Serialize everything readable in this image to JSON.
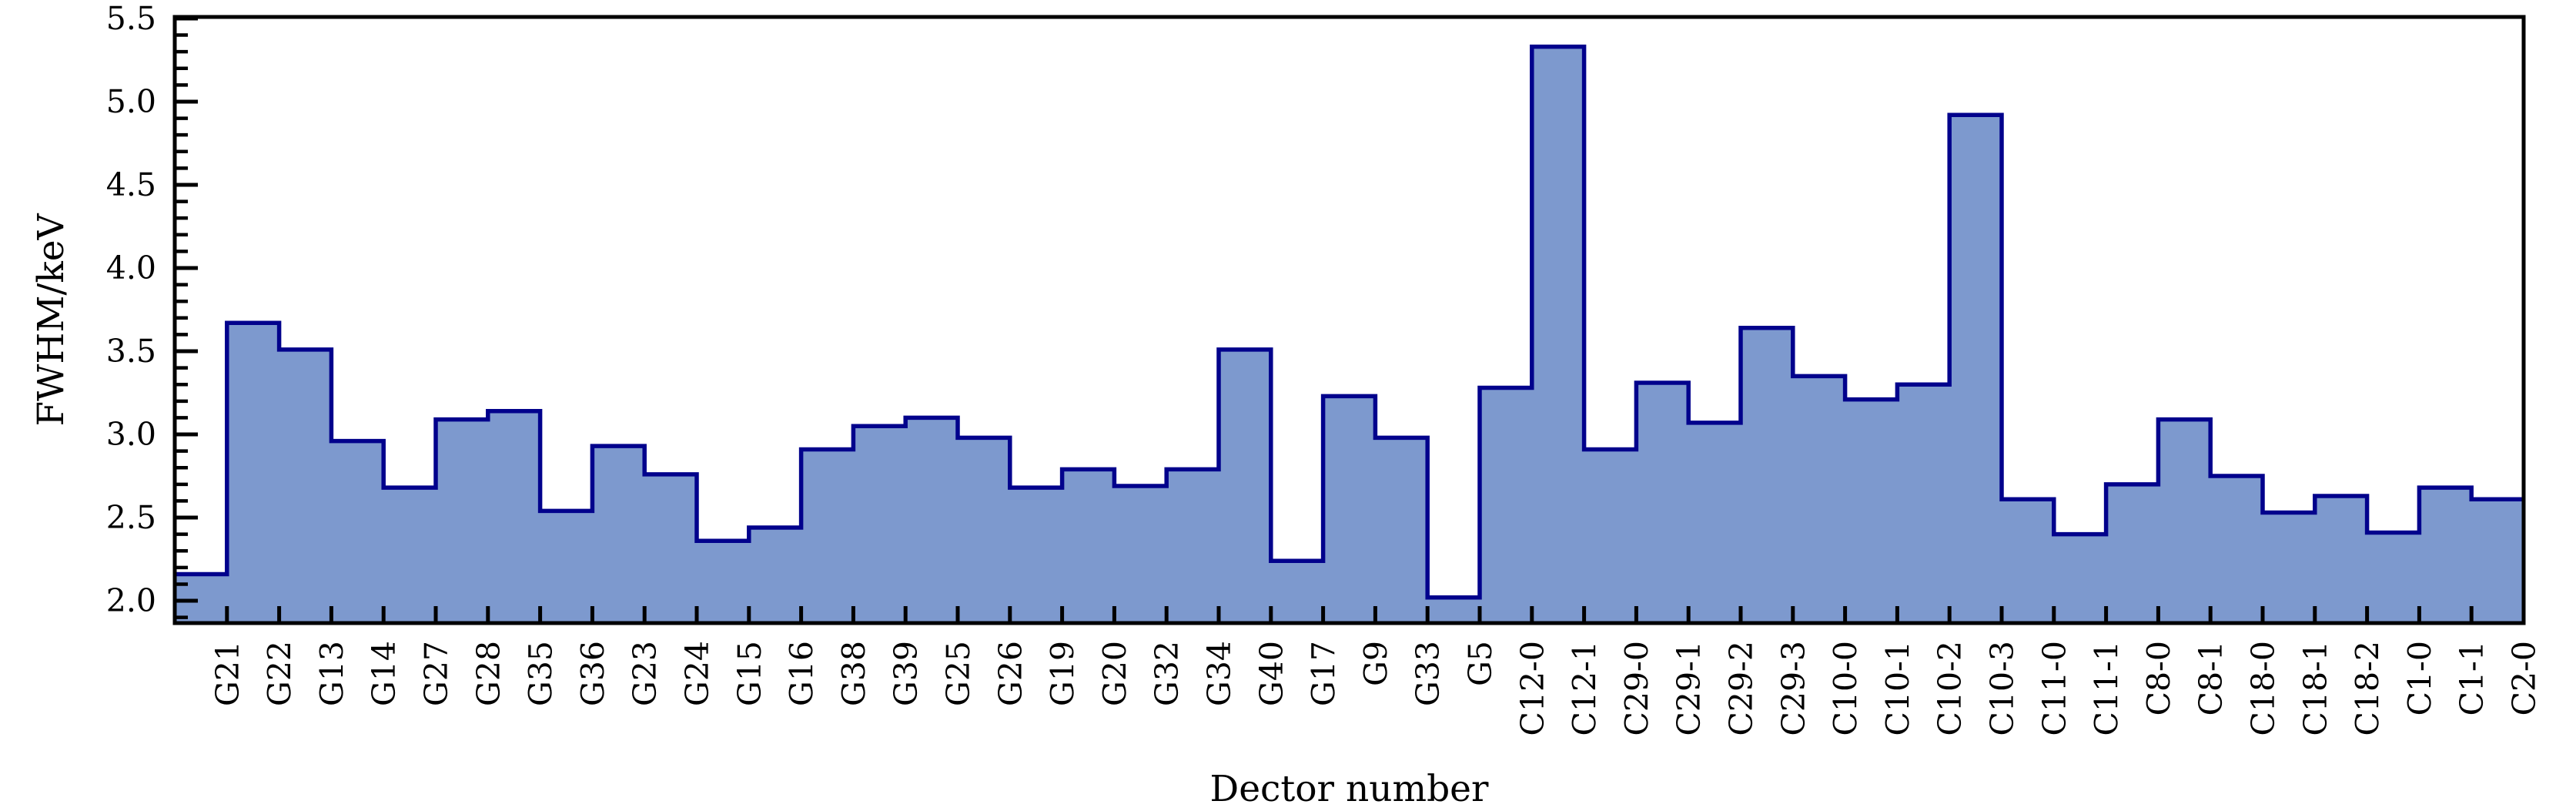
{
  "chart_data": {
    "type": "step-histogram",
    "title": "",
    "xlabel": "Dector number",
    "ylabel": "FWHM/keV",
    "categories": [
      "G21",
      "G22",
      "G13",
      "G14",
      "G27",
      "G28",
      "G35",
      "G36",
      "G23",
      "G24",
      "G15",
      "G16",
      "G38",
      "G39",
      "G25",
      "G26",
      "G19",
      "G20",
      "G32",
      "G34",
      "G40",
      "G17",
      "G9",
      "G33",
      "G5",
      "C12-0",
      "C12-1",
      "C29-0",
      "C29-1",
      "C29-2",
      "C29-3",
      "C10-0",
      "C10-1",
      "C10-2",
      "C10-3",
      "C11-0",
      "C11-1",
      "C8-0",
      "C8-1",
      "C18-0",
      "C18-1",
      "C18-2",
      "C1-0",
      "C1-1",
      "C2-0"
    ],
    "values": [
      2.16,
      3.67,
      3.51,
      2.96,
      2.68,
      3.09,
      3.14,
      2.54,
      2.93,
      2.76,
      2.36,
      2.44,
      2.91,
      3.05,
      3.1,
      2.98,
      2.68,
      2.79,
      2.69,
      2.79,
      3.51,
      2.24,
      3.23,
      2.98,
      2.02,
      3.28,
      5.33,
      2.91,
      3.31,
      3.07,
      3.64,
      3.35,
      3.21,
      3.3,
      4.92,
      2.61,
      2.4,
      2.7,
      3.09,
      2.75,
      2.53,
      2.63,
      2.41,
      2.68,
      2.61
    ],
    "ylim": [
      1.866,
      5.509
    ],
    "y_major_ticks": [
      2.0,
      2.5,
      3.0,
      3.5,
      4.0,
      4.5,
      5.0,
      5.5
    ],
    "y_minor_step": 0.1,
    "grid": "off",
    "legend": "none",
    "tick_direction": "in",
    "fill_color": "#7d99ce",
    "line_color": "#02028c",
    "axis_color": "#000000"
  }
}
